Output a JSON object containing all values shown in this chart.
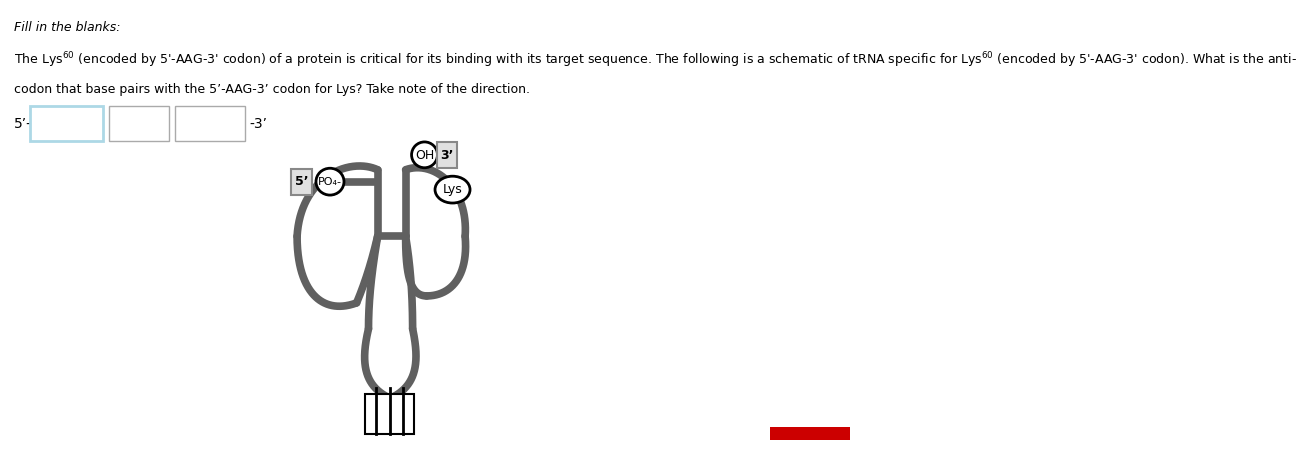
{
  "title_italic": "Fill in the blanks:",
  "line1a": "The Lys",
  "line1b": " (encoded by 5’-AAG-3’ codon) of a protein is critical for its binding with its target sequence. The following is a schematic of tRNA specific for Lys",
  "line1c": " (encoded by 5’-AAG-3’ codon). What is the anti-",
  "line2": "codon that base pairs with the 5’-AAG-3’ codon for Lys? Take note of the direction.",
  "tRNA_color": "#606060",
  "tRNA_linewidth": 5.5,
  "background": "#ffffff",
  "box_color_first": "#add8e6",
  "red_bar_color": "#cc0000",
  "five_prime_label": "5’",
  "po4_label": "PO₄-",
  "oh_label": "OH",
  "three_prime_label": "3’",
  "lys_label": "Lys"
}
